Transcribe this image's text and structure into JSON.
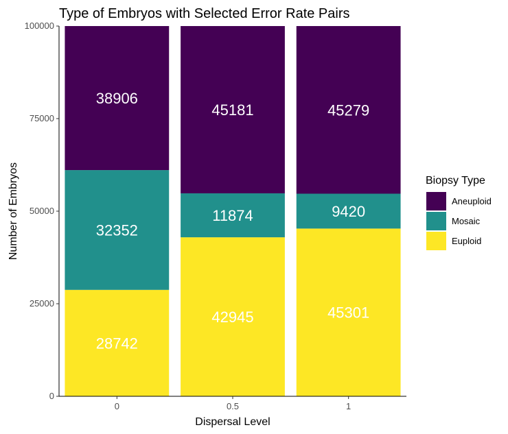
{
  "chart_data": {
    "type": "bar",
    "stacked": true,
    "title": "Type of Embryos with Selected Error Rate Pairs",
    "xlabel": "Dispersal Level",
    "ylabel": "Number of Embryos",
    "categories": [
      "0",
      "0.5",
      "1"
    ],
    "ylim": [
      0,
      100000
    ],
    "yticks": [
      0,
      25000,
      50000,
      75000,
      100000
    ],
    "series": [
      {
        "name": "Euploid",
        "color": "#fde725",
        "values": [
          28742,
          42945,
          45301
        ]
      },
      {
        "name": "Mosaic",
        "color": "#21908c",
        "values": [
          32352,
          11874,
          9420
        ]
      },
      {
        "name": "Aneuploid",
        "color": "#440154",
        "values": [
          38906,
          45181,
          45279
        ]
      }
    ],
    "legend": {
      "title": "Biopsy Type",
      "position": "right",
      "order": [
        "Aneuploid",
        "Mosaic",
        "Euploid"
      ]
    },
    "grid": false
  }
}
